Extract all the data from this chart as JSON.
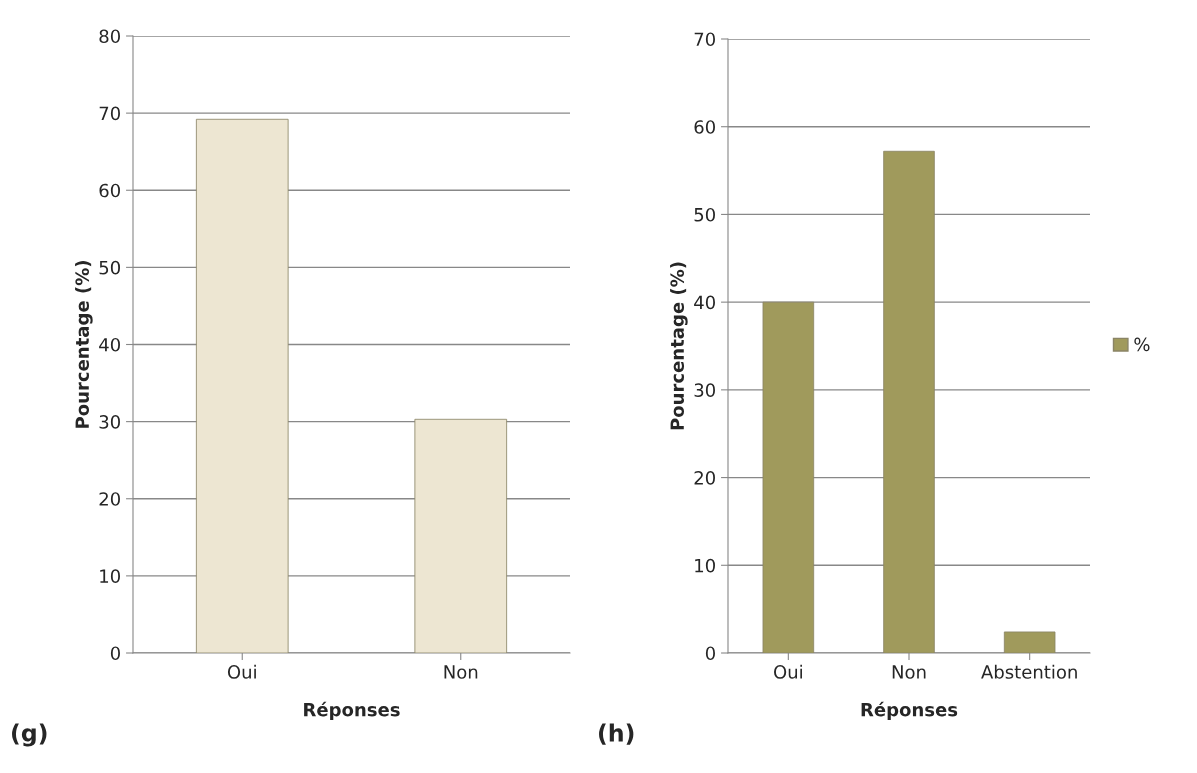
{
  "chart_data": [
    {
      "type": "bar",
      "categories": [
        "Oui",
        "Non"
      ],
      "xlabel": "Réponses",
      "ylabel": "Pourcentage (%)",
      "ylim": [
        0,
        80
      ],
      "yticks": [
        0,
        10,
        20,
        30,
        40,
        50,
        60,
        70,
        80
      ],
      "grid": "y",
      "legend": false,
      "series": [
        {
          "color": "#ede6d2",
          "values": [
            69.2,
            30.3
          ]
        }
      ],
      "annotations": [
        "(g)"
      ]
    },
    {
      "type": "bar",
      "categories": [
        "Oui",
        "Non",
        "Abstention"
      ],
      "xlabel": "Réponses",
      "ylabel": "Pourcentage (%)",
      "ylim": [
        0,
        70
      ],
      "yticks": [
        0,
        10,
        20,
        30,
        40,
        50,
        60,
        70
      ],
      "grid": "y",
      "legend": "right",
      "series": [
        {
          "name": "%",
          "color": "#a09a5c",
          "values": [
            40.0,
            57.2,
            2.4
          ]
        }
      ],
      "annotations": [
        "(h)"
      ]
    }
  ]
}
